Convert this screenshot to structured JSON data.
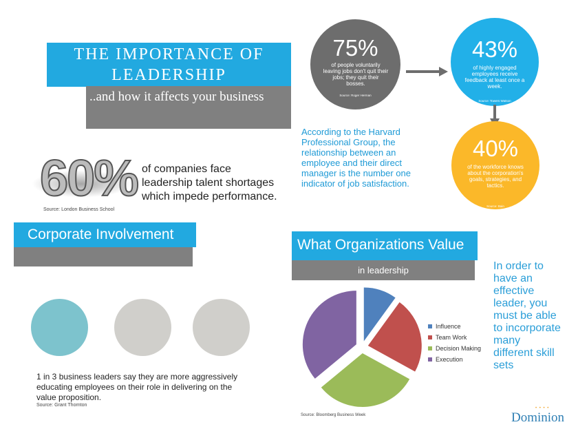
{
  "header": {
    "title": "THE IMPORTANCE OF\nLEADERSHIP",
    "subtitle": "..and how it affects your business"
  },
  "stat_60": {
    "value": "60%",
    "text": "of companies face leadership talent shortages which impede performance.",
    "source": "Source: London Business School"
  },
  "corporate": {
    "title": "Corporate Involvement",
    "text": "1 in 3 business leaders say they are more aggressively educating employees on their role in delivering on the value proposition.",
    "source": "Source: Grant Thornton"
  },
  "stat_75": {
    "value": "75%",
    "text": "of people voluntarily leaving jobs don't quit their jobs; they quit their bosses.",
    "source": "Source: Roger Herman"
  },
  "stat_43": {
    "value": "43%",
    "text": "of highly engaged employees receive feedback at least once a week.",
    "source": "Source: Towers Watson"
  },
  "stat_40": {
    "value": "40%",
    "text": "of the workforce knows about the corporation's goals, strategies, and tactics.",
    "source": "Source: Bain"
  },
  "harvard": {
    "text": "According to the Harvard Professional Group, the relationship between an employee and their direct manager is the number one indicator of job satisfaction."
  },
  "organizations": {
    "title": "What Organizations Value",
    "subtitle": "in leadership",
    "side_text": "In order to have an effective leader, you must be able to incorporate many different skill sets",
    "source": "Source: Bloomberg Business Week"
  },
  "chart_data": {
    "type": "pie",
    "categories": [
      "Influence",
      "Team Work",
      "Decision Making",
      "Execution"
    ],
    "values": [
      10,
      23,
      31,
      36
    ],
    "colors": [
      "#4f81bd",
      "#c0504d",
      "#9bbb59",
      "#8064a2"
    ],
    "exploded": true,
    "legend_position": "right"
  },
  "brand": {
    "logo": "Dominion"
  }
}
